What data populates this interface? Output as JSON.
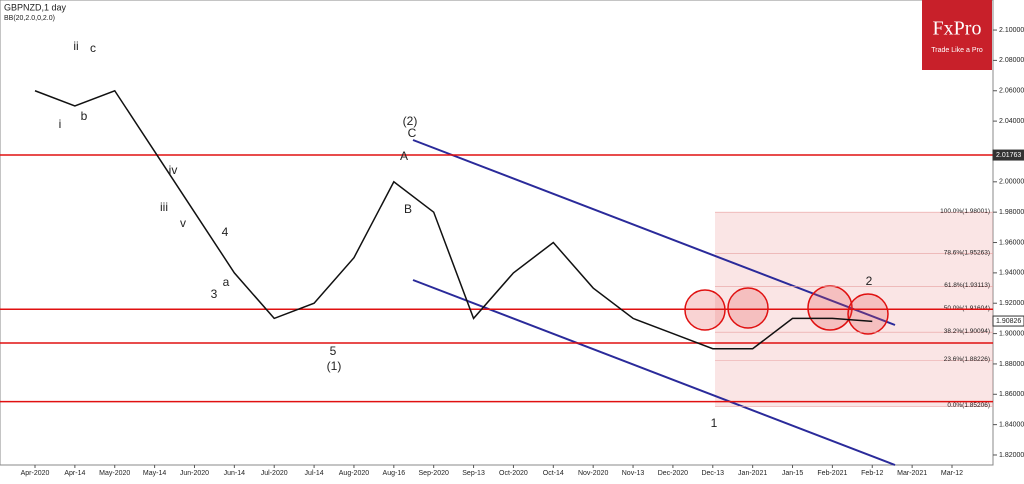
{
  "chart_data": {
    "type": "line",
    "title": "GBPNZD,1 day",
    "subtitle": "BB(20,2.0,0,2.0)",
    "brand": {
      "name": "FxPro",
      "tagline": "Trade Like a Pro"
    },
    "categories": [
      "Apr-2020",
      "Apr-14",
      "May-2020",
      "May-14",
      "Jun-2020",
      "Jun-14",
      "Jul-2020",
      "Jul-14",
      "Aug-2020",
      "Aug-16",
      "Sep-2020",
      "Sep-13",
      "Oct-2020",
      "Oct-14",
      "Nov-2020",
      "Nov-13",
      "Dec-2020",
      "Dec-13",
      "Jan-2021",
      "Jan-15",
      "Feb-2021",
      "Feb-12",
      "Mar-2021",
      "Mar-12"
    ],
    "series": [
      {
        "name": "GBPNZD",
        "color": "#111111",
        "values": [
          2.06,
          2.05,
          2.06,
          2.02,
          1.98,
          1.94,
          1.91,
          1.92,
          1.95,
          2.0,
          1.98,
          1.91,
          1.94,
          1.96,
          1.93,
          1.91,
          1.9,
          1.89,
          1.89,
          1.91,
          1.91,
          1.908,
          null,
          null
        ]
      }
    ],
    "ylim": [
      1.8134,
      2.1198
    ],
    "yticks": [
      {
        "value": 2.1,
        "label": "2.10000"
      },
      {
        "value": 2.08,
        "label": "2.08000"
      },
      {
        "value": 2.06,
        "label": "2.06000"
      },
      {
        "value": 2.04,
        "label": "2.04000"
      },
      {
        "value": 2.0,
        "label": "2.00000"
      },
      {
        "value": 1.98,
        "label": "1.98000"
      },
      {
        "value": 1.96,
        "label": "1.96000"
      },
      {
        "value": 1.94,
        "label": "1.94000"
      },
      {
        "value": 1.92,
        "label": "1.92000"
      },
      {
        "value": 1.9,
        "label": "1.90000"
      },
      {
        "value": 1.88,
        "label": "1.88000"
      },
      {
        "value": 1.86,
        "label": "1.86000"
      },
      {
        "value": 1.84,
        "label": "1.84000"
      },
      {
        "value": 1.82,
        "label": "1.82000"
      }
    ],
    "levels": [
      2.01763,
      1.91604,
      1.8938,
      1.8552
    ],
    "level_color": "#e01010",
    "price_labels": [
      {
        "value": 2.01763,
        "label": "2.01763"
      },
      {
        "value": 1.90826,
        "label": "1.90826"
      }
    ],
    "fibonacci": [
      {
        "value": 1.98001,
        "label": "100.0%(1.98001)"
      },
      {
        "value": 1.95263,
        "label": "78.6%(1.95263)"
      },
      {
        "value": 1.93113,
        "label": "61.8%(1.93113)"
      },
      {
        "value": 1.91604,
        "label": "50.0%(1.91604)"
      },
      {
        "value": 1.90094,
        "label": "38.2%(1.90094)"
      },
      {
        "value": 1.88226,
        "label": "23.6%(1.88226)"
      },
      {
        "value": 1.85206,
        "label": "0.0%(1.85206)"
      }
    ],
    "annotations": [
      "(2)",
      "C",
      "A",
      "B",
      "4",
      "3",
      "5",
      "(1)",
      "1",
      "2",
      "i",
      "ii",
      "iii",
      "iv",
      "v",
      "a",
      "b",
      "c"
    ]
  }
}
